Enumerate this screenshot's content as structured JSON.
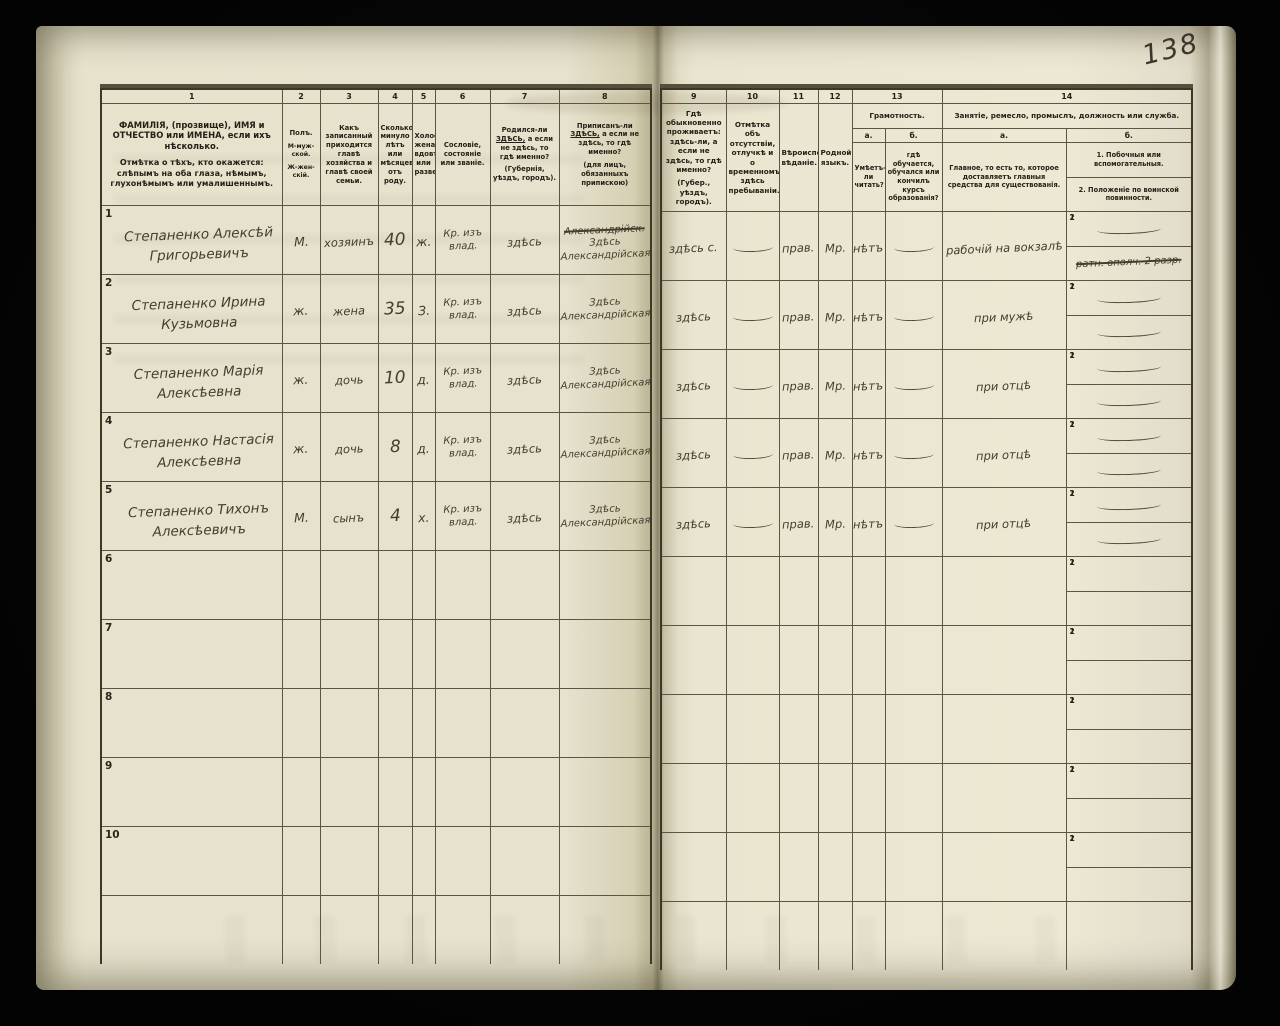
{
  "page": {
    "folio_number": "138"
  },
  "header": {
    "nums": {
      "c1": "1",
      "c2": "2",
      "c3": "3",
      "c4": "4",
      "c5": "5",
      "c6": "6",
      "c7": "7",
      "c8": "8",
      "c9": "9",
      "c10": "10",
      "c11": "11",
      "c12": "12",
      "c13": "13",
      "c14": "14"
    },
    "c1": {
      "main": "ФАМИЛІЯ, (прозвище), ИМЯ и ОТЧЕСТВО или ИМЕНА, если ихъ нѣсколько.",
      "note": "Отмѣтка о тѣхъ, кто окажется: слѣпымъ на оба глаза, нѣмымъ, глухонѣмымъ или умалишеннымъ."
    },
    "c2": {
      "l1": "Полъ.",
      "l2": "М-муж-ской.",
      "l3": "Ж-жен-скій."
    },
    "c3": "Какъ записанный приходится главѣ хозяйства и главѣ своей семьи.",
    "c4": "Сколько минуло лѣтъ или мѣсяцевъ отъ роду.",
    "c5": "Холостъ, женатъ, вдовъ или разведенъ.",
    "c6": "Сословіе, состояніе или званіе.",
    "c7": {
      "pre": "Родился-ли",
      "emph": "ЗДѢСЬ,",
      "post": "а если не здѣсь, то гдѣ именно?",
      "paren": "(Губернія, уѣздъ, городъ)."
    },
    "c8": {
      "pre": "Приписанъ-ли",
      "emph": "ЗДѢСЬ,",
      "post": "а если не здѣсь, то гдѣ именно?",
      "paren": "(для лицъ, обязанныхъ припискою)"
    },
    "c9": {
      "main": "Гдѣ обыкновенно проживаетъ: здѣсь-ли, а если не здѣсь, то гдѣ именно?",
      "paren": "(Губер., уѣздъ, городъ)."
    },
    "c10": "Отмѣтка объ отсутствіи, отлучкѣ и о временномъ здѣсь пребываніи.",
    "c11": "Вѣроиспо-вѣданіе.",
    "c12": "Родной языкъ.",
    "c13": {
      "title": "Грамотность.",
      "a_label": "а.",
      "b_label": "б.",
      "a": "Умѣетъ-ли читать?",
      "b": "гдѣ обучается, обучался или кончилъ курсъ образованія?"
    },
    "c14": {
      "title": "Занятіе, ремесло, промыслъ, должность или служба.",
      "a_label": "а.",
      "b_label": "б.",
      "a": "Главное, то есть то, которое доставляетъ главныя средства для существованія.",
      "b1": "1. Побочныя или вспомогательныя.",
      "b2": "2. Положеніе по воинской повинности."
    }
  },
  "row_sub_labels": {
    "first": "1",
    "second": "2"
  },
  "rows": [
    {
      "num": "1",
      "name": "Степаненко Алексѣй Григорьевичъ",
      "sex": "М.",
      "relation": "хозяинъ",
      "age": "40",
      "marital": "ж.",
      "estate": "Кр. изъ влад.",
      "born": "здѣсь",
      "registered_crossed": "Александрійск.",
      "registered": "Здѣсь Александрійская",
      "resides": "здѣсь с.",
      "absence": "—",
      "faith": "прав.",
      "language": "Мр.",
      "reads": "нѣтъ",
      "education": "—",
      "occupation": "рабочій на вокзалѣ",
      "side": "—",
      "military": "ратн. ополч. 2 разр.",
      "military_struck": true
    },
    {
      "num": "2",
      "name": "Степаненко Ирина Кузьмовна",
      "sex": "ж.",
      "relation": "жена",
      "age": "35",
      "marital": "З.",
      "estate": "Кр. изъ влад.",
      "born": "здѣсь",
      "registered_crossed": "",
      "registered": "Здѣсь Александрійская",
      "resides": "здѣсь",
      "absence": "—",
      "faith": "прав.",
      "language": "Мр.",
      "reads": "нѣтъ",
      "education": "—",
      "occupation": "при мужѣ",
      "side": "—",
      "military": "—",
      "military_struck": false
    },
    {
      "num": "3",
      "name": "Степаненко Марія Алексѣевна",
      "sex": "ж.",
      "relation": "дочь",
      "age": "10",
      "marital": "д.",
      "estate": "Кр. изъ влад.",
      "born": "здѣсь",
      "registered_crossed": "",
      "registered": "Здѣсь Александрійская",
      "resides": "здѣсь",
      "absence": "—",
      "faith": "прав.",
      "language": "Мр.",
      "reads": "нѣтъ",
      "education": "—",
      "occupation": "при отцѣ",
      "side": "—",
      "military": "—",
      "military_struck": false
    },
    {
      "num": "4",
      "name": "Степаненко Настасія Алексѣевна",
      "sex": "ж.",
      "relation": "дочь",
      "age": "8",
      "marital": "д.",
      "estate": "Кр. изъ влад.",
      "born": "здѣсь",
      "registered_crossed": "",
      "registered": "Здѣсь Александрійская",
      "resides": "здѣсь",
      "absence": "—",
      "faith": "прав.",
      "language": "Мр.",
      "reads": "нѣтъ",
      "education": "—",
      "occupation": "при отцѣ",
      "side": "—",
      "military": "—",
      "military_struck": false
    },
    {
      "num": "5",
      "name": "Степаненко Тихонъ Алексѣевичъ",
      "sex": "М.",
      "relation": "сынъ",
      "age": "4",
      "marital": "х.",
      "estate": "Кр. изъ влад.",
      "born": "здѣсь",
      "registered_crossed": "",
      "registered": "Здѣсь Александрійская",
      "resides": "здѣсь",
      "absence": "—",
      "faith": "прав.",
      "language": "Мр.",
      "reads": "нѣтъ",
      "education": "—",
      "occupation": "при отцѣ",
      "side": "—",
      "military": "—",
      "military_struck": false
    },
    {
      "num": "6",
      "name": "",
      "sex": "",
      "relation": "",
      "age": "",
      "marital": "",
      "estate": "",
      "born": "",
      "registered_crossed": "",
      "registered": "",
      "resides": "",
      "absence": "",
      "faith": "",
      "language": "",
      "reads": "",
      "education": "",
      "occupation": "",
      "side": "",
      "military": "",
      "military_struck": false
    },
    {
      "num": "7",
      "name": "",
      "sex": "",
      "relation": "",
      "age": "",
      "marital": "",
      "estate": "",
      "born": "",
      "registered_crossed": "",
      "registered": "",
      "resides": "",
      "absence": "",
      "faith": "",
      "language": "",
      "reads": "",
      "education": "",
      "occupation": "",
      "side": "",
      "military": "",
      "military_struck": false
    },
    {
      "num": "8",
      "name": "",
      "sex": "",
      "relation": "",
      "age": "",
      "marital": "",
      "estate": "",
      "born": "",
      "registered_crossed": "",
      "registered": "",
      "resides": "",
      "absence": "",
      "faith": "",
      "language": "",
      "reads": "",
      "education": "",
      "occupation": "",
      "side": "",
      "military": "",
      "military_struck": false
    },
    {
      "num": "9",
      "name": "",
      "sex": "",
      "relation": "",
      "age": "",
      "marital": "",
      "estate": "",
      "born": "",
      "registered_crossed": "",
      "registered": "",
      "resides": "",
      "absence": "",
      "faith": "",
      "language": "",
      "reads": "",
      "education": "",
      "occupation": "",
      "side": "",
      "military": "",
      "military_struck": false
    },
    {
      "num": "10",
      "name": "",
      "sex": "",
      "relation": "",
      "age": "",
      "marital": "",
      "estate": "",
      "born": "",
      "registered_crossed": "",
      "registered": "",
      "resides": "",
      "absence": "",
      "faith": "",
      "language": "",
      "reads": "",
      "education": "",
      "occupation": "",
      "side": "",
      "military": "",
      "military_struck": false
    }
  ]
}
